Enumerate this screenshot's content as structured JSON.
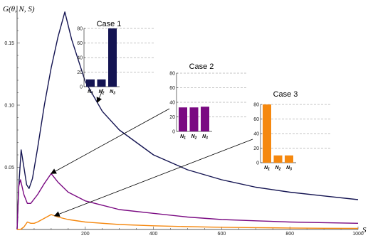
{
  "chart_data": {
    "type": "line",
    "ylabel": "G(θ, N, S)",
    "xlabel": "S",
    "xlim": [
      0,
      1000
    ],
    "ylim": [
      0,
      0.18
    ],
    "x_ticks": [
      "200",
      "400",
      "600",
      "800",
      "1000"
    ],
    "y_ticks": [
      "0.05",
      "0.10",
      "0.15"
    ],
    "grid": false,
    "series": [
      {
        "color": "#141452",
        "x": [
          0,
          5,
          12,
          20,
          28,
          35,
          45,
          60,
          80,
          100,
          120,
          140,
          160,
          200,
          250,
          300,
          400,
          500,
          600,
          700,
          800,
          900,
          1000
        ],
        "y": [
          0.0,
          0.035,
          0.064,
          0.05,
          0.036,
          0.033,
          0.041,
          0.065,
          0.1,
          0.13,
          0.155,
          0.175,
          0.153,
          0.119,
          0.095,
          0.08,
          0.06,
          0.048,
          0.04,
          0.034,
          0.03,
          0.027,
          0.024
        ]
      },
      {
        "color": "#7a0a82",
        "x": [
          0,
          5,
          10,
          20,
          30,
          40,
          60,
          80,
          100,
          120,
          150,
          200,
          300,
          400,
          500,
          600,
          700,
          800,
          900,
          1000
        ],
        "y": [
          0.0,
          0.035,
          0.04,
          0.028,
          0.021,
          0.021,
          0.028,
          0.037,
          0.045,
          0.038,
          0.03,
          0.023,
          0.016,
          0.013,
          0.01,
          0.008,
          0.007,
          0.006,
          0.0055,
          0.005
        ]
      },
      {
        "color": "#f5880f",
        "x": [
          0,
          10,
          20,
          30,
          40,
          50,
          60,
          80,
          100,
          120,
          150,
          200,
          300,
          400,
          500,
          600,
          700,
          800,
          900,
          1000
        ],
        "y": [
          0.0,
          0.0,
          0.002,
          0.006,
          0.005,
          0.005,
          0.006,
          0.009,
          0.012,
          0.01,
          0.008,
          0.006,
          0.004,
          0.003,
          0.0023,
          0.0018,
          0.0015,
          0.0012,
          0.001,
          0.0009
        ]
      }
    ],
    "insets": [
      {
        "title": "Case 1",
        "color": "#141452",
        "categories": [
          "N1",
          "N2",
          "N3"
        ],
        "values": [
          10,
          10,
          80
        ],
        "ylim": [
          0,
          80
        ],
        "y_ticks": [
          "0",
          "20",
          "40",
          "60",
          "80"
        ],
        "points_to_series": 0,
        "points_to_x": 235
      },
      {
        "title": "Case 2",
        "color": "#7a0a82",
        "categories": [
          "N1",
          "N2",
          "N3"
        ],
        "values": [
          33,
          33,
          34
        ],
        "ylim": [
          0,
          80
        ],
        "y_ticks": [
          "0",
          "20",
          "40",
          "60",
          "80"
        ],
        "points_to_series": 1,
        "points_to_x": 100
      },
      {
        "title": "Case 3",
        "color": "#f5880f",
        "categories": [
          "N1",
          "N2",
          "N3"
        ],
        "values": [
          80,
          10,
          10
        ],
        "ylim": [
          0,
          80
        ],
        "y_ticks": [
          "0",
          "20",
          "40",
          "60",
          "80"
        ],
        "points_to_series": 2,
        "points_to_x": 110
      }
    ]
  }
}
